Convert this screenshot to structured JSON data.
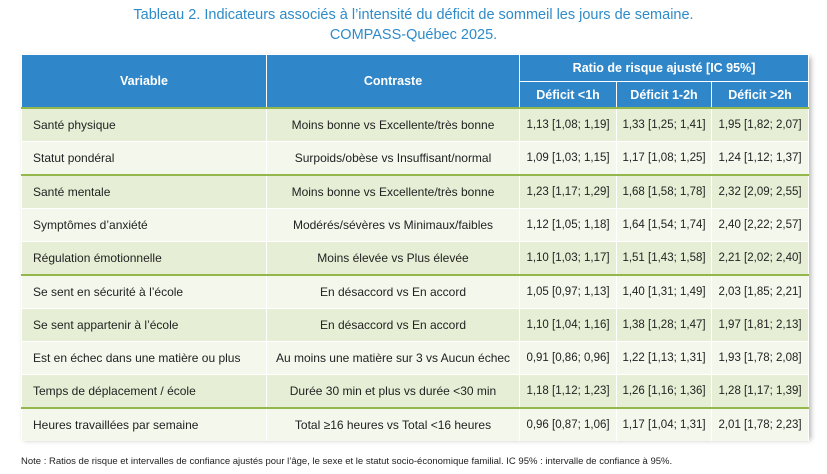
{
  "title_line1": "Tableau 2. Indicateurs associés à l’intensité du déficit de sommeil les jours de semaine.",
  "title_line2": "COMPASS-Québec 2025.",
  "headers": {
    "variable": "Variable",
    "contraste": "Contraste",
    "ratio": "Ratio de risque ajusté [IC 95%]",
    "deficit1": "Déficit <1h",
    "deficit2": "Déficit 1-2h",
    "deficit3": "Déficit >2h"
  },
  "rows": [
    {
      "variable": "Santé physique",
      "contraste": "Moins bonne vs Excellente/très bonne",
      "d1": "1,13 [1,08; 1,19]",
      "d2": "1,33 [1,25; 1,41]",
      "d3": "1,95 [1,82; 2,07]"
    },
    {
      "variable": "Statut pondéral",
      "contraste": "Surpoids/obèse vs Insuffisant/normal",
      "d1": "1,09 [1,03; 1,15]",
      "d2": "1,17 [1,08; 1,25]",
      "d3": "1,24 [1,12; 1,37]"
    },
    {
      "variable": "Santé mentale",
      "contraste": "Moins bonne vs Excellente/très bonne",
      "d1": "1,23 [1,17; 1,29]",
      "d2": "1,68 [1,58; 1,78]",
      "d3": "2,32 [2,09; 2,55]"
    },
    {
      "variable": "Symptômes d’anxiété",
      "contraste": "Modérés/sévères vs Minimaux/faibles",
      "d1": "1,12 [1,05; 1,18]",
      "d2": "1,64 [1,54; 1,74]",
      "d3": "2,40 [2,22; 2,57]"
    },
    {
      "variable": "Régulation émotionnelle",
      "contraste": "Moins élevée vs Plus élevée",
      "d1": "1,10 [1,03; 1,17]",
      "d2": "1,51 [1,43; 1,58]",
      "d3": "2,21 [2,02; 2,40]"
    },
    {
      "variable": "Se sent en sécurité à l’école",
      "contraste": "En désaccord vs En accord",
      "d1": "1,05 [0,97; 1,13]",
      "d2": "1,40 [1,31; 1,49]",
      "d3": "2,03 [1,85; 2,21]"
    },
    {
      "variable": "Se sent appartenir à l’école",
      "contraste": "En désaccord vs En accord",
      "d1": "1,10 [1,04; 1,16]",
      "d2": "1,38 [1,28; 1,47]",
      "d3": "1,97 [1,81; 2,13]"
    },
    {
      "variable": "Est en échec dans une matière ou plus",
      "contraste": "Au moins une matière sur 3 vs Aucun échec",
      "d1": "0,91 [0,86; 0,96]",
      "d2": "1,22 [1,13; 1,31]",
      "d3": "1,93 [1,78; 2,08]"
    },
    {
      "variable": "Temps de déplacement / école",
      "contraste": "Durée 30 min et plus vs durée <30 min",
      "d1": "1,18 [1,12; 1,23]",
      "d2": "1,26 [1,16; 1,36]",
      "d3": "1,28 [1,17; 1,39]"
    },
    {
      "variable": "Heures travaillées par semaine",
      "contraste": "Total ≥16 heures vs Total <16 heures",
      "d1": "0,96 [0,87; 1,06]",
      "d2": "1,17 [1,04; 1,31]",
      "d3": "2,01 [1,78; 2,23]"
    }
  ],
  "note": "Note : Ratios de risque et intervalles de confiance ajustés pour l’âge, le sexe et le statut socio-économique familial. IC 95% : intervalle de confiance à 95%."
}
